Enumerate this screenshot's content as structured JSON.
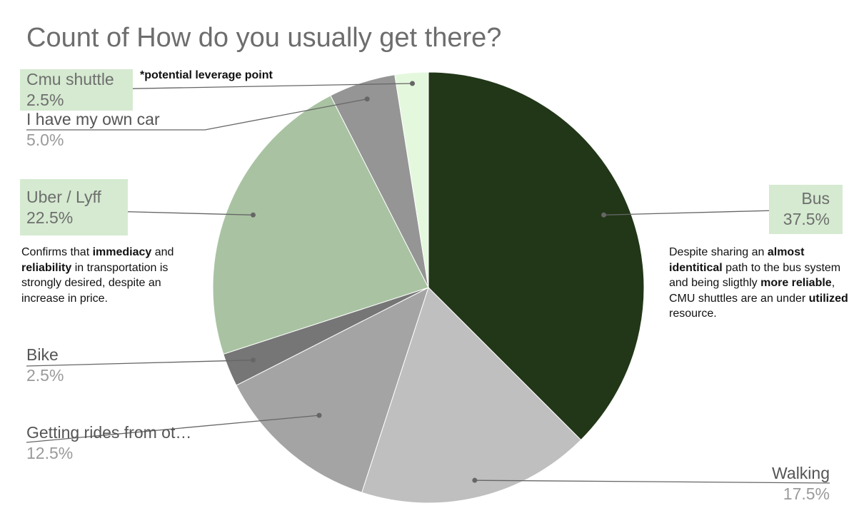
{
  "chart_data": {
    "type": "pie",
    "title": "Count of How do you usually get there?",
    "slices": [
      {
        "label": "Bus",
        "value": 37.5,
        "value_label": "37.5%",
        "color": "#213718"
      },
      {
        "label": "Walking",
        "value": 17.5,
        "value_label": "17.5%",
        "color": "#bfbfbf"
      },
      {
        "label": "Getting rides from ot…",
        "value": 12.5,
        "value_label": "12.5%",
        "color": "#a4a4a4"
      },
      {
        "label": "Bike",
        "value": 2.5,
        "value_label": "2.5%",
        "color": "#767676"
      },
      {
        "label": "Uber / Lyff",
        "value": 22.5,
        "value_label": "22.5%",
        "color": "#a9c3a2"
      },
      {
        "label": "I have my own car",
        "value": 5.0,
        "value_label": "5.0%",
        "color": "#959595"
      },
      {
        "label": "Cmu shuttle",
        "value": 2.5,
        "value_label": "2.5%",
        "color": "#e4f8dd"
      }
    ],
    "start_angle_deg": 0,
    "direction": "clockwise",
    "legend": "none"
  },
  "annotations": {
    "leverage": "*potential leverage point",
    "left_note": [
      {
        "t": "Confirms that ",
        "b": false
      },
      {
        "t": "immediacy",
        "b": true
      },
      {
        "t": " and ",
        "b": false
      },
      {
        "t": "reliability",
        "b": true
      },
      {
        "t": " in transportation is strongly desired, despite an increase in price.",
        "b": false
      }
    ],
    "right_note": [
      {
        "t": "Despite sharing an ",
        "b": false
      },
      {
        "t": "almost identitical",
        "b": true
      },
      {
        "t": " path to the bus system and being sligthly ",
        "b": false
      },
      {
        "t": "more reliable",
        "b": true
      },
      {
        "t": ", CMU shuttles are an under ",
        "b": false
      },
      {
        "t": "utilized",
        "b": true
      },
      {
        "t": " resource.",
        "b": false
      }
    ]
  }
}
